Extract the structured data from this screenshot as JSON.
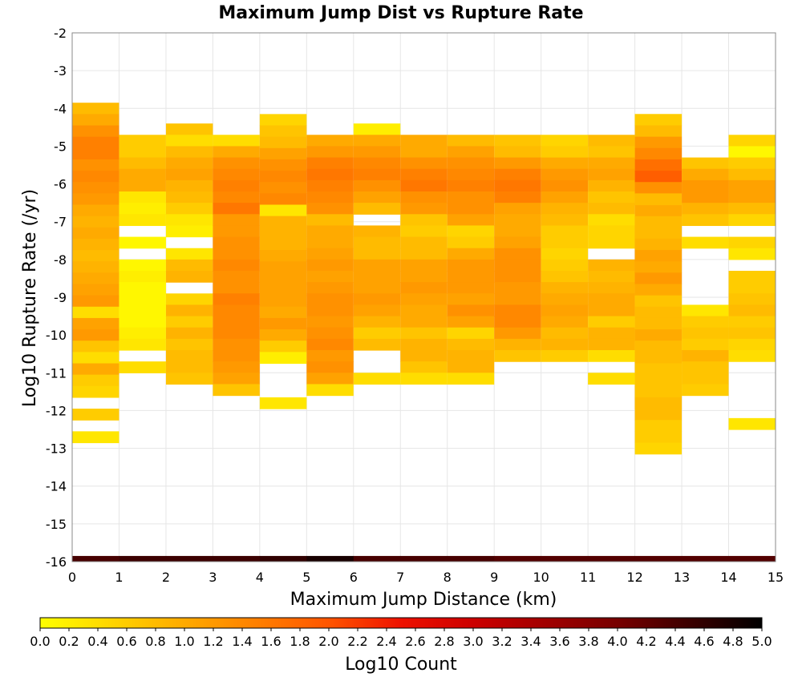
{
  "chart_data": {
    "type": "heatmap",
    "title": "Maximum Jump Dist vs Rupture Rate",
    "xlabel": "Maximum Jump Distance (km)",
    "ylabel": "Log10 Rupture Rate (/yr)",
    "xlim": [
      0,
      15
    ],
    "ylim": [
      -16,
      -2
    ],
    "xticks": [
      "0",
      "1",
      "2",
      "3",
      "4",
      "5",
      "6",
      "7",
      "8",
      "9",
      "10",
      "11",
      "12",
      "13",
      "14",
      "15"
    ],
    "yticks": [
      "-2",
      "-3",
      "-4",
      "-5",
      "-6",
      "-7",
      "-8",
      "-9",
      "-10",
      "-11",
      "-12",
      "-13",
      "-14",
      "-15",
      "-16"
    ],
    "colorbar": {
      "label": "Log10 Count",
      "range": [
        0,
        5
      ],
      "ticks": [
        "0.0",
        "0.2",
        "0.4",
        "0.6",
        "0.8",
        "1.0",
        "1.2",
        "1.4",
        "1.6",
        "1.8",
        "2.0",
        "2.2",
        "2.4",
        "2.6",
        "2.8",
        "3.0",
        "3.2",
        "3.4",
        "3.6",
        "3.8",
        "4.0",
        "4.2",
        "4.4",
        "4.6",
        "4.8",
        "5.0"
      ]
    },
    "bin_height": 0.3,
    "bottom_row_y": -16,
    "bottom_row_values": [
      4.4,
      4.5,
      4.5,
      4.5,
      4.6,
      4.8,
      4.4,
      4.4,
      4.4,
      4.3,
      4.3,
      4.3,
      4.3,
      4.3,
      4.3
    ],
    "columns": [
      {
        "x": 0,
        "y_top": -3.85,
        "values": [
          0.8,
          1.0,
          1.3,
          1.5,
          1.5,
          1.3,
          1.4,
          1.3,
          1.2,
          1.0,
          0.9,
          1.0,
          0.9,
          0.8,
          0.9,
          1.0,
          1.1,
          1.2,
          0.4,
          1.1,
          1.2,
          0.7,
          0.4,
          1.0,
          0.6,
          0.5,
          null,
          0.6,
          null,
          0.3
        ]
      },
      {
        "x": 1,
        "y_top": -4.7,
        "values": [
          0.6,
          0.6,
          0.8,
          1.0,
          1.0,
          0.3,
          0.2,
          0.3,
          null,
          0.1,
          null,
          0.1,
          0.2,
          0.1,
          0.1,
          0.1,
          0.1,
          0.2,
          0.3,
          null,
          0.4
        ]
      },
      {
        "x": 2,
        "y_top": -4.4,
        "values": [
          0.7,
          0.4,
          0.8,
          1.0,
          1.1,
          0.9,
          0.8,
          0.6,
          0.3,
          0.2,
          null,
          0.3,
          0.8,
          0.9,
          null,
          0.5,
          0.9,
          0.6,
          0.9,
          0.7,
          0.8,
          0.8,
          0.7
        ]
      },
      {
        "x": 3,
        "y_top": -4.7,
        "values": [
          0.4,
          1.0,
          1.3,
          1.4,
          1.5,
          1.4,
          1.6,
          1.2,
          1.2,
          1.3,
          1.3,
          1.4,
          1.3,
          1.3,
          1.5,
          1.4,
          1.4,
          1.4,
          1.3,
          1.3,
          1.2,
          1.1,
          0.7
        ]
      },
      {
        "x": 4,
        "y_top": -4.15,
        "values": [
          0.5,
          0.7,
          0.8,
          1.1,
          1.3,
          1.4,
          1.3,
          1.4,
          0.3,
          0.9,
          0.9,
          0.9,
          1.0,
          1.1,
          1.1,
          1.1,
          1.1,
          1.0,
          1.2,
          1.0,
          0.6,
          0.2,
          null,
          null,
          null,
          0.3
        ]
      },
      {
        "x": 5,
        "y_top": -4.7,
        "values": [
          1.0,
          1.2,
          1.5,
          1.6,
          1.5,
          1.4,
          1.3,
          0.8,
          1.0,
          1.0,
          1.1,
          1.2,
          1.1,
          1.2,
          1.3,
          1.3,
          1.2,
          1.3,
          1.4,
          1.2,
          1.3,
          1.1,
          0.4
        ]
      },
      {
        "x": 6,
        "y_top": -4.4,
        "values": [
          0.2,
          1.0,
          1.2,
          1.4,
          1.5,
          1.3,
          1.1,
          0.8,
          null,
          0.9,
          0.8,
          0.8,
          1.1,
          1.1,
          1.1,
          1.2,
          1.1,
          0.9,
          0.6,
          0.8,
          null,
          null,
          0.4
        ]
      },
      {
        "x": 7,
        "y_top": -4.7,
        "values": [
          1.0,
          1.0,
          1.3,
          1.5,
          1.6,
          1.3,
          1.2,
          0.7,
          0.6,
          0.8,
          0.8,
          1.1,
          1.1,
          1.2,
          1.1,
          1.0,
          1.0,
          0.7,
          0.9,
          0.9,
          0.7,
          0.4
        ]
      },
      {
        "x": 8,
        "y_top": -4.7,
        "values": [
          0.8,
          1.1,
          1.3,
          1.4,
          1.5,
          1.3,
          1.3,
          1.1,
          0.5,
          0.6,
          1.0,
          1.2,
          1.2,
          1.2,
          1.1,
          1.3,
          1.1,
          0.5,
          0.8,
          0.9,
          0.9,
          0.4
        ]
      },
      {
        "x": 9,
        "y_top": -4.7,
        "values": [
          0.7,
          0.8,
          1.2,
          1.5,
          1.6,
          1.5,
          1.1,
          1.0,
          1.0,
          1.1,
          1.3,
          1.3,
          1.3,
          1.2,
          1.2,
          1.4,
          1.4,
          1.2,
          0.9,
          0.7
        ]
      },
      {
        "x": 10,
        "y_top": -4.7,
        "values": [
          0.5,
          0.6,
          1.0,
          1.2,
          1.3,
          1.1,
          0.9,
          0.8,
          0.6,
          0.6,
          0.5,
          0.6,
          0.7,
          0.9,
          1.0,
          1.1,
          1.0,
          0.8,
          0.9,
          0.6
        ]
      },
      {
        "x": 11,
        "y_top": -4.7,
        "values": [
          0.8,
          0.7,
          1.0,
          1.1,
          0.9,
          0.7,
          0.8,
          0.4,
          0.5,
          0.5,
          null,
          0.9,
          0.8,
          0.9,
          1.0,
          1.0,
          0.6,
          0.9,
          0.9,
          0.4,
          null,
          0.4
        ]
      },
      {
        "x": 12,
        "y_top": -4.15,
        "values": [
          0.1,
          null,
          0.5,
          0.6,
          0.9,
          1.0,
          1.1,
          1.2,
          1.0,
          1.3,
          1.5,
          1.4,
          1.7,
          1.6,
          1.4,
          0.9,
          0.5,
          0.7,
          0.5,
          0.4,
          0.6,
          0.6,
          0.7,
          0.5,
          0.6,
          0.6
        ]
      },
      {
        "x": 12,
        "y_top": -4.15,
        "values": [
          0.6,
          0.8,
          1.2,
          1.4,
          1.7,
          1.9,
          1.3,
          0.8,
          null,
          0.8,
          0.8,
          0.9,
          1.1,
          1.0,
          1.2,
          1.0,
          0.7,
          0.8,
          0.8,
          1.0,
          0.8,
          0.8,
          0.7,
          0.7,
          0.7,
          0.8,
          0.8,
          0.6,
          0.6,
          0.5
        ]
      },
      {
        "x": 13,
        "y_top": -5.3,
        "values": [
          0.7,
          1.0,
          1.2,
          1.2,
          0.9,
          0.7,
          null,
          0.4,
          null,
          null,
          null,
          null,
          null,
          0.3,
          0.6,
          0.7,
          0.6,
          0.9,
          0.7,
          0.7,
          0.6
        ]
      },
      {
        "x": 14,
        "y_top": -4.7,
        "values": [
          0.5,
          0.1,
          0.6,
          0.8,
          1.1,
          1.1,
          0.8,
          0.5,
          null,
          0.5,
          0.3,
          null,
          0.6,
          0.6,
          0.7,
          0.8,
          0.6,
          0.7,
          0.5,
          0.4,
          null,
          null,
          null,
          null,
          null,
          0.3
        ]
      }
    ]
  }
}
